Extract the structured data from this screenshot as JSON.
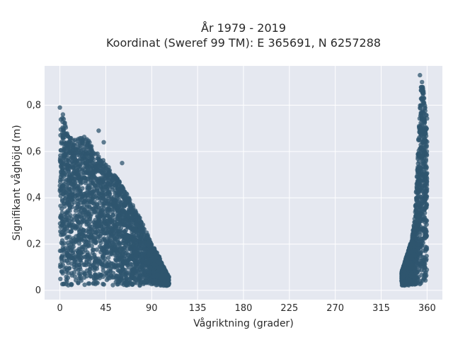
{
  "chart_data": {
    "type": "scatter",
    "title_line1": "År 1979 - 2019",
    "title_line2": "Koordinat (Sweref 99 TM): E 365691, N 6257288",
    "xlabel": "Vågriktning (grader)",
    "ylabel": "Signifikant våghöjd (m)",
    "xlim": [
      -15,
      375
    ],
    "ylim": [
      -0.04,
      0.97
    ],
    "xticks": [
      0,
      45,
      90,
      135,
      180,
      225,
      270,
      315,
      360
    ],
    "xtick_labels": [
      "0",
      "45",
      "90",
      "135",
      "180",
      "225",
      "270",
      "315",
      "360"
    ],
    "yticks": [
      0,
      0.2,
      0.4,
      0.6,
      0.8
    ],
    "ytick_labels": [
      "0",
      "0,2",
      "0,4",
      "0,6",
      "0,8"
    ],
    "grid": true,
    "marker_color": "#2f566f",
    "plot_bg": "#e5e8f0",
    "envelope": {
      "cluster_north_east": {
        "x": [
          0,
          3,
          8,
          15,
          25,
          35,
          45,
          55,
          62,
          70,
          80,
          90,
          97,
          103,
          107
        ],
        "ymax": [
          0.78,
          0.75,
          0.68,
          0.65,
          0.67,
          0.6,
          0.55,
          0.49,
          0.45,
          0.38,
          0.3,
          0.2,
          0.15,
          0.09,
          0.06
        ]
      },
      "cluster_north_west": {
        "x": [
          335,
          340,
          345,
          348,
          350,
          352,
          354,
          356,
          358,
          360
        ],
        "ymax": [
          0.08,
          0.15,
          0.22,
          0.32,
          0.5,
          0.7,
          0.9,
          0.88,
          0.8,
          0.75
        ]
      }
    },
    "highlight_points": [
      {
        "x": 0,
        "y": 0.79
      },
      {
        "x": 3,
        "y": 0.76
      },
      {
        "x": 38,
        "y": 0.69
      },
      {
        "x": 43,
        "y": 0.64
      },
      {
        "x": 61,
        "y": 0.55
      },
      {
        "x": 353,
        "y": 0.93
      },
      {
        "x": 355,
        "y": 0.9
      },
      {
        "x": 357,
        "y": 0.83
      },
      {
        "x": 335,
        "y": 0.04
      }
    ]
  }
}
